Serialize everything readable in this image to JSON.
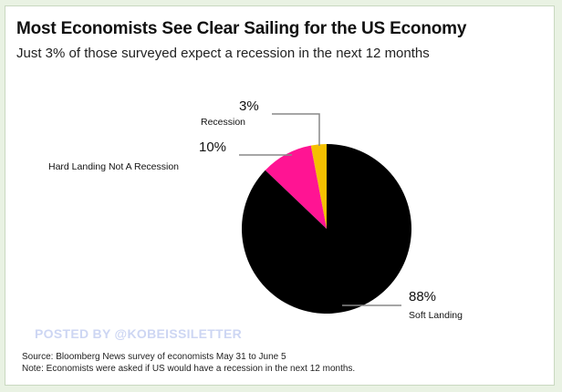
{
  "chart_data": {
    "type": "pie",
    "title": "Most Economists See Clear Sailing for the US Economy",
    "subtitle": "Just 3% of those surveyed expect a recession in the next 12 months",
    "slices": [
      {
        "label": "Recession",
        "value": 3,
        "value_label": "3%",
        "color": "#f5c000"
      },
      {
        "label": "Hard Landing Not A Recession",
        "value": 10,
        "value_label": "10%",
        "color": "#ff1493"
      },
      {
        "label": "Soft Landing",
        "value": 88,
        "value_label": "88%",
        "color": "#000000"
      }
    ]
  },
  "watermark": "POSTED BY @KOBEISSILETTER",
  "source": "Source: Bloomberg News survey of economists May 31 to June 5",
  "note": "Note: Economists were asked if US would have a recession in the next 12 months."
}
